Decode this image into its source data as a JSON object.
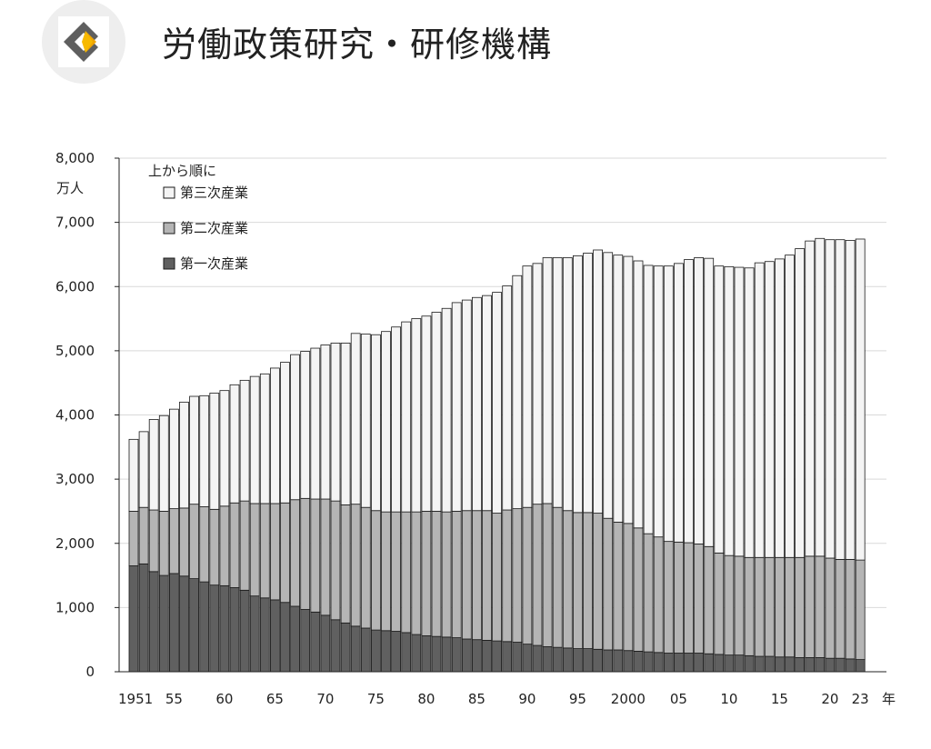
{
  "header": {
    "org_name": "労働政策研究・研修機構",
    "logo_icon": "jil-logo-icon"
  },
  "chart_data": {
    "type": "bar",
    "stacked": true,
    "y_unit": "万人",
    "x_unit": "年",
    "ylim": [
      0,
      8000
    ],
    "y_ticks": [
      "0",
      "1,000",
      "2,000",
      "3,000",
      "4,000",
      "5,000",
      "6,000",
      "7,000",
      "8,000"
    ],
    "x_tick_labels": [
      {
        "year": 1951,
        "label": "1951"
      },
      {
        "year": 1955,
        "label": "55"
      },
      {
        "year": 1960,
        "label": "60"
      },
      {
        "year": 1965,
        "label": "65"
      },
      {
        "year": 1970,
        "label": "70"
      },
      {
        "year": 1975,
        "label": "75"
      },
      {
        "year": 1980,
        "label": "80"
      },
      {
        "year": 1985,
        "label": "85"
      },
      {
        "year": 1990,
        "label": "90"
      },
      {
        "year": 1995,
        "label": "95"
      },
      {
        "year": 2000,
        "label": "2000"
      },
      {
        "year": 2005,
        "label": "05"
      },
      {
        "year": 2010,
        "label": "10"
      },
      {
        "year": 2015,
        "label": "15"
      },
      {
        "year": 2020,
        "label": "20"
      },
      {
        "year": 2023,
        "label": "23"
      }
    ],
    "legend_title": "上から順に",
    "legend_position": "top-left",
    "grid": true,
    "x": [
      1951,
      1952,
      1953,
      1954,
      1955,
      1956,
      1957,
      1958,
      1959,
      1960,
      1961,
      1962,
      1963,
      1964,
      1965,
      1966,
      1967,
      1968,
      1969,
      1970,
      1971,
      1972,
      1973,
      1974,
      1975,
      1976,
      1977,
      1978,
      1979,
      1980,
      1981,
      1982,
      1983,
      1984,
      1985,
      1986,
      1987,
      1988,
      1989,
      1990,
      1991,
      1992,
      1993,
      1994,
      1995,
      1996,
      1997,
      1998,
      1999,
      2000,
      2001,
      2002,
      2003,
      2004,
      2005,
      2006,
      2007,
      2008,
      2009,
      2010,
      2011,
      2012,
      2013,
      2014,
      2015,
      2016,
      2017,
      2018,
      2019,
      2020,
      2021,
      2022,
      2023
    ],
    "series": [
      {
        "name": "第一次産業",
        "color": "#606060",
        "values": [
          1650,
          1680,
          1560,
          1500,
          1530,
          1490,
          1450,
          1400,
          1350,
          1340,
          1310,
          1270,
          1180,
          1150,
          1120,
          1080,
          1020,
          970,
          930,
          880,
          810,
          760,
          710,
          680,
          650,
          640,
          630,
          610,
          580,
          560,
          550,
          540,
          530,
          510,
          500,
          490,
          480,
          470,
          460,
          430,
          410,
          390,
          380,
          370,
          360,
          360,
          350,
          340,
          340,
          330,
          320,
          310,
          300,
          290,
          290,
          290,
          290,
          280,
          270,
          260,
          260,
          250,
          240,
          240,
          230,
          230,
          220,
          220,
          220,
          210,
          210,
          200,
          190
        ]
      },
      {
        "name": "第二次産業",
        "color": "#b5b5b5",
        "values": [
          850,
          880,
          960,
          1000,
          1010,
          1060,
          1160,
          1170,
          1180,
          1240,
          1320,
          1390,
          1440,
          1470,
          1500,
          1550,
          1660,
          1730,
          1760,
          1810,
          1850,
          1840,
          1900,
          1880,
          1860,
          1850,
          1860,
          1880,
          1910,
          1940,
          1950,
          1950,
          1970,
          2000,
          2010,
          2020,
          1990,
          2050,
          2080,
          2130,
          2200,
          2230,
          2180,
          2140,
          2120,
          2120,
          2120,
          2050,
          1990,
          1980,
          1920,
          1840,
          1800,
          1740,
          1730,
          1720,
          1700,
          1670,
          1580,
          1550,
          1540,
          1530,
          1540,
          1540,
          1550,
          1550,
          1560,
          1580,
          1580,
          1560,
          1540,
          1550,
          1550
        ]
      },
      {
        "name": "第三次産業",
        "color": "#f4f4f4",
        "values": [
          1120,
          1180,
          1410,
          1490,
          1550,
          1650,
          1680,
          1730,
          1810,
          1800,
          1840,
          1880,
          1980,
          2020,
          2110,
          2190,
          2260,
          2290,
          2350,
          2400,
          2460,
          2520,
          2660,
          2700,
          2740,
          2810,
          2880,
          2960,
          3010,
          3040,
          3100,
          3170,
          3250,
          3280,
          3320,
          3350,
          3440,
          3490,
          3630,
          3760,
          3750,
          3830,
          3890,
          3940,
          4000,
          4040,
          4100,
          4140,
          4160,
          4160,
          4160,
          4180,
          4220,
          4290,
          4340,
          4410,
          4460,
          4490,
          4470,
          4500,
          4500,
          4510,
          4590,
          4610,
          4650,
          4710,
          4810,
          4910,
          4950,
          4960,
          4980,
          4970,
          5000
        ]
      }
    ]
  }
}
